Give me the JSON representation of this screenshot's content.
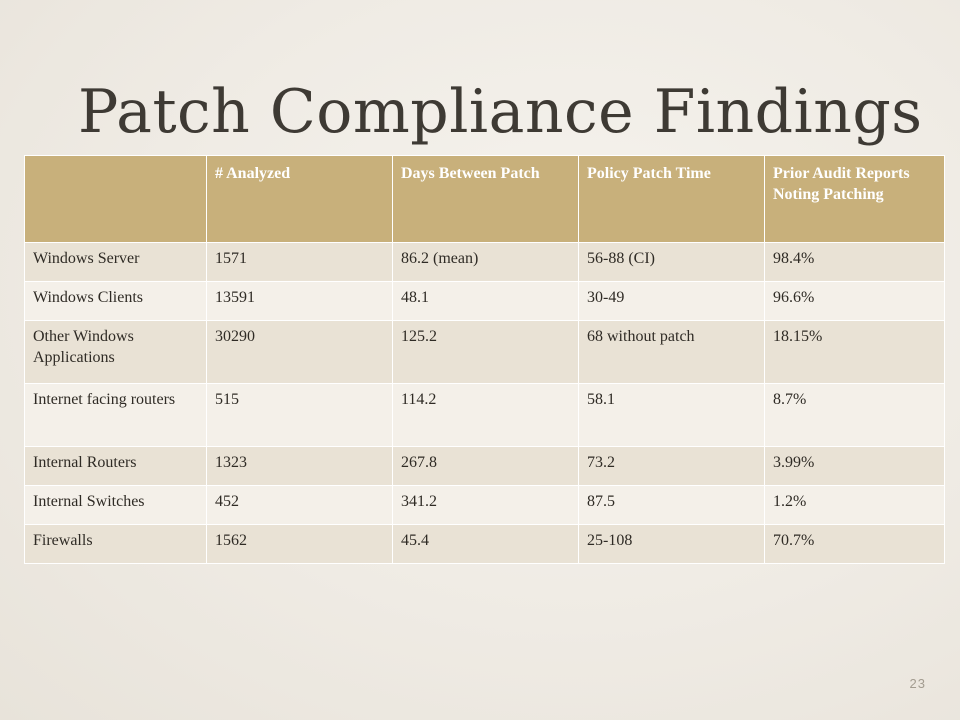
{
  "slide": {
    "title": "Patch Compliance Findings",
    "page_number": "23"
  },
  "table": {
    "headers": [
      "",
      "# Analyzed",
      "Days Between Patch",
      "Policy Patch Time",
      "Prior Audit Reports Noting Patching"
    ],
    "rows": [
      [
        "Windows Server",
        "1571",
        "86.2 (mean)",
        "56-88 (CI)",
        "98.4%"
      ],
      [
        "Windows Clients",
        "13591",
        "48.1",
        "30-49",
        "96.6%"
      ],
      [
        "Other Windows Applications",
        "30290",
        "125.2",
        "68 without patch",
        "18.15%"
      ],
      [
        "Internet facing routers",
        "515",
        "114.2",
        "58.1",
        "8.7%"
      ],
      [
        "Internal Routers",
        "1323",
        "267.8",
        "73.2",
        "3.99%"
      ],
      [
        "Internal Switches",
        "452",
        "341.2",
        "87.5",
        "1.2%"
      ],
      [
        "Firewalls",
        "1562",
        "45.4",
        "25-108",
        "70.7%"
      ]
    ]
  },
  "colors": {
    "header_bg": "#c8b07b",
    "row_odd_bg": "#e9e2d5",
    "row_even_bg": "#f4f0e9",
    "title_text": "#3e3a34"
  }
}
